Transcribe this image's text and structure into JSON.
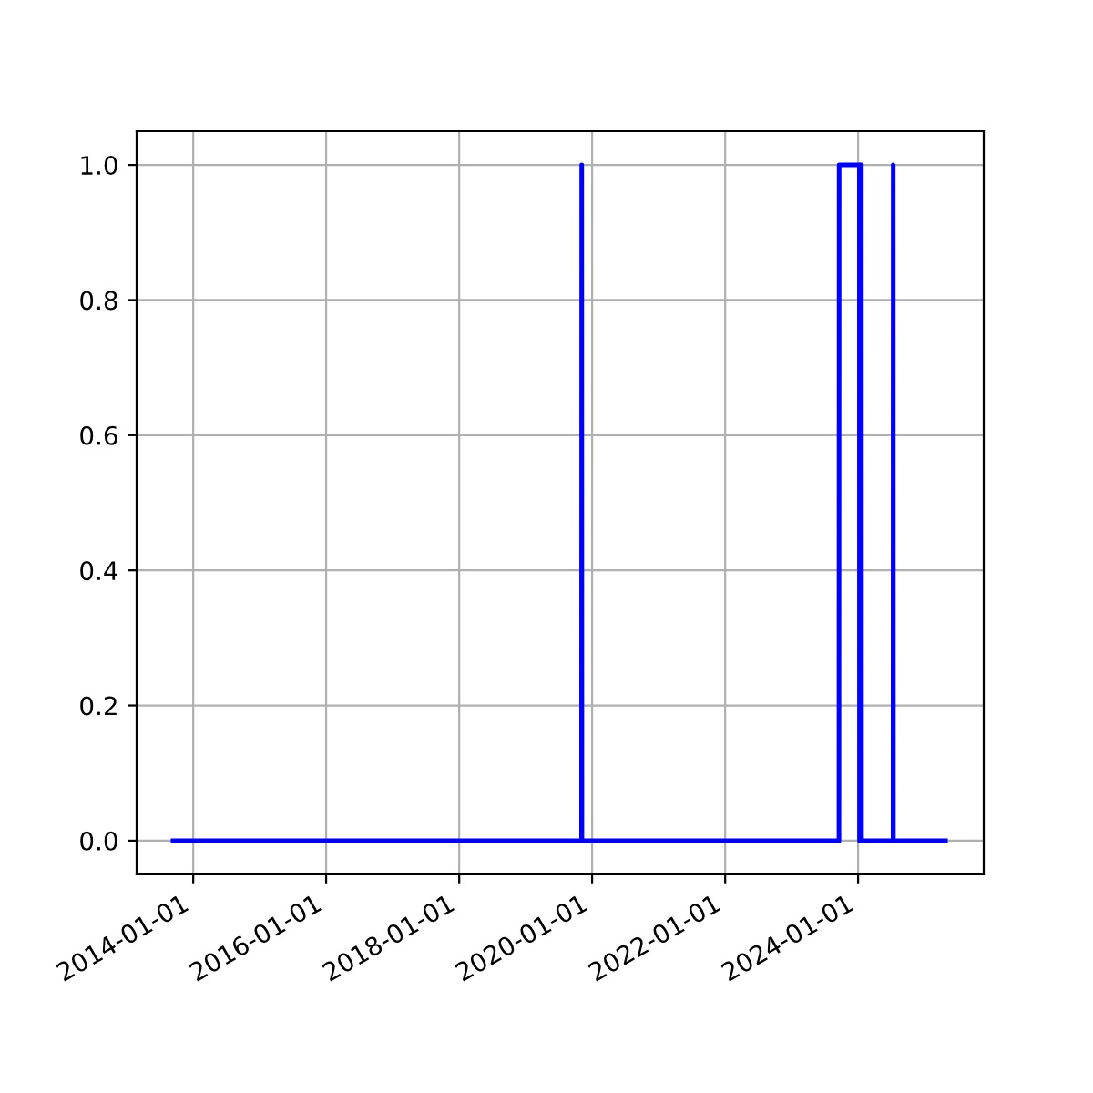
{
  "chart_data": {
    "type": "line",
    "x": [
      "2013-09-12",
      "2019-11-04",
      "2019-11-05",
      "2019-11-06",
      "2023-09-18",
      "2023-09-19",
      "2024-01-08",
      "2024-01-09",
      "2024-01-10",
      "2024-01-12",
      "2024-01-14",
      "2024-01-16",
      "2024-01-18",
      "2024-01-19",
      "2024-01-20",
      "2024-07-11",
      "2024-07-12",
      "2024-07-13",
      "2025-04-25"
    ],
    "series": [
      {
        "color": "#0000ff",
        "values": [
          0,
          0,
          1,
          0,
          0,
          1,
          1,
          0,
          1,
          0,
          1,
          0,
          1,
          1,
          0,
          0,
          1,
          0,
          0
        ]
      }
    ],
    "xlim": [
      "2013-02-24",
      "2025-11-21"
    ],
    "xticks": [
      "2014-01-01",
      "2016-01-01",
      "2018-01-01",
      "2020-01-01",
      "2022-01-01",
      "2024-01-01"
    ],
    "ylim": [
      -0.05,
      1.05
    ],
    "yticks": [
      {
        "value": 0,
        "label": "0.0"
      },
      {
        "value": 0.2,
        "label": "0.2"
      },
      {
        "value": 0.4,
        "label": "0.4"
      },
      {
        "value": 0.6,
        "label": "0.6"
      },
      {
        "value": 0.8,
        "label": "0.8"
      },
      {
        "value": 1,
        "label": "1.0"
      }
    ],
    "grid": true,
    "line_style": "solid",
    "marker": "none"
  }
}
